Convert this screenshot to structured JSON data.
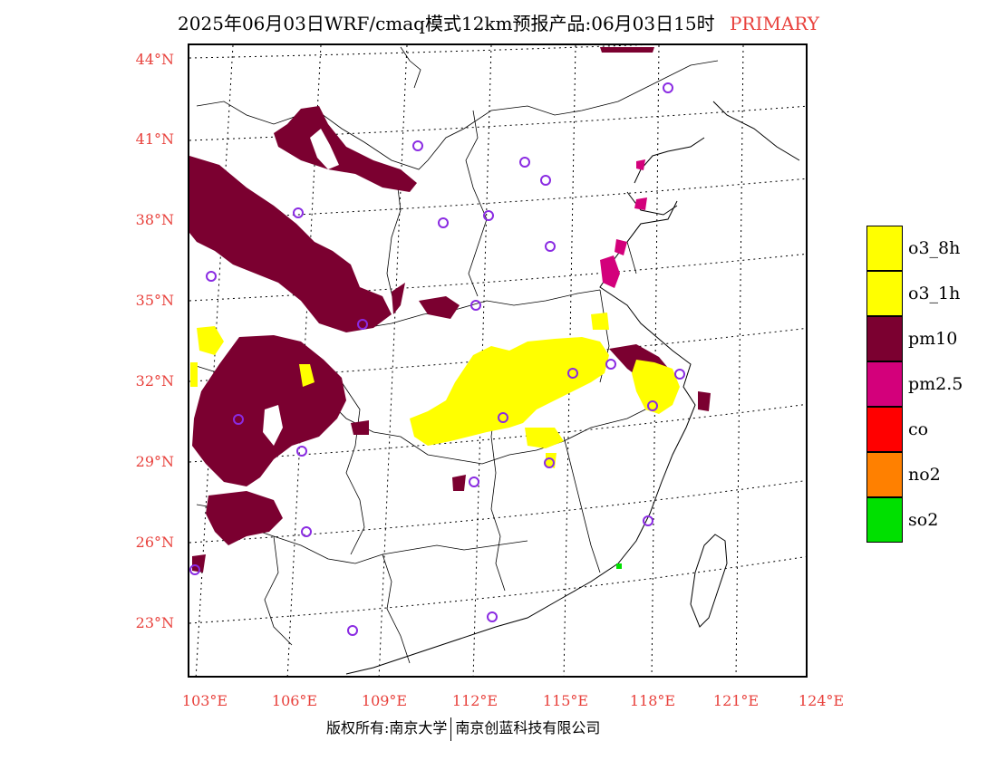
{
  "title": {
    "main": "2025年06月03日WRF/cmaq模式12km预报产品:06月03日15时",
    "tag": "PRIMARY"
  },
  "lat_labels": [
    "44°N",
    "41°N",
    "38°N",
    "35°N",
    "32°N",
    "29°N",
    "26°N",
    "23°N"
  ],
  "lon_labels": [
    "103°E",
    "106°E",
    "109°E",
    "112°E",
    "115°E",
    "118°E",
    "121°E",
    "124°E"
  ],
  "legend": [
    {
      "label": "o3_8h",
      "color": "#ffff00"
    },
    {
      "label": "o3_1h",
      "color": "#ffff00"
    },
    {
      "label": "pm10",
      "color": "#7b0030"
    },
    {
      "label": "pm2.5",
      "color": "#d3007b"
    },
    {
      "label": "co",
      "color": "#ff0000"
    },
    {
      "label": "no2",
      "color": "#ff8000"
    },
    {
      "label": "so2",
      "color": "#00e000"
    }
  ],
  "footer": {
    "left": "版权所有:南京大学",
    "right": "南京创蓝科技有限公司"
  },
  "colors": {
    "label_red": "#e8413c",
    "city_marker": "#8a2be2"
  }
}
